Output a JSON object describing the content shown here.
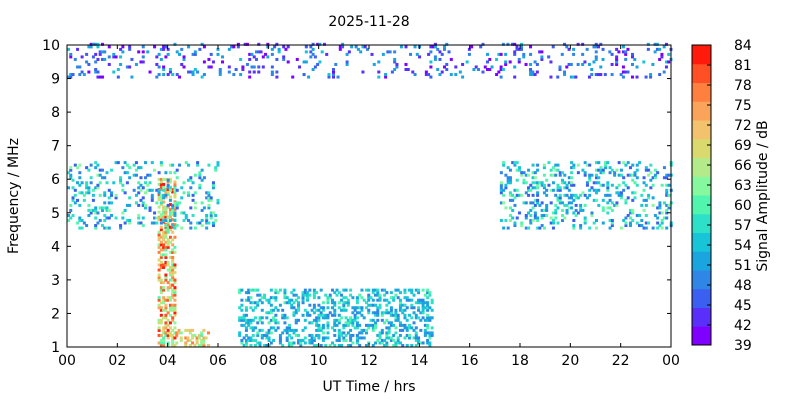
{
  "chart_data": {
    "type": "heatmap",
    "title": "2025-11-28",
    "xlabel": "UT Time / hrs",
    "ylabel": "Frequency / MHz",
    "colorbar_label": "Signal Amplitude / dB",
    "xlim": [
      0,
      24
    ],
    "ylim": [
      1,
      10
    ],
    "x_ticks": [
      "00",
      "02",
      "04",
      "06",
      "08",
      "10",
      "12",
      "14",
      "16",
      "18",
      "20",
      "22",
      "00"
    ],
    "y_ticks": [
      "1",
      "2",
      "3",
      "4",
      "5",
      "6",
      "7",
      "8",
      "9",
      "10"
    ],
    "colorbar": {
      "min": 39,
      "max": 84,
      "ticks": [
        "39",
        "42",
        "45",
        "48",
        "51",
        "54",
        "57",
        "60",
        "63",
        "66",
        "69",
        "72",
        "75",
        "78",
        "81",
        "84"
      ],
      "colors": [
        "#7f00ff",
        "#5a2ff9",
        "#3b5ff0",
        "#2f86e6",
        "#1aa5df",
        "#17c4d8",
        "#2fe0c8",
        "#52f5ae",
        "#86f99e",
        "#b3eb8a",
        "#d9d96e",
        "#f2c26e",
        "#f9a45a",
        "#ff7f3f",
        "#ff4f25",
        "#ff1a0c"
      ]
    },
    "grid": false,
    "description_of_features": [
      {
        "x": [
          3.6,
          4.3
        ],
        "y": [
          1.0,
          6.0
        ],
        "amplitude": [
          60,
          84
        ]
      },
      {
        "x": [
          4.3,
          5.6
        ],
        "y": [
          1.0,
          1.5
        ],
        "amplitude": [
          60,
          78
        ]
      },
      {
        "x": [
          6.8,
          14.5
        ],
        "y": [
          1.0,
          2.7
        ],
        "amplitude": [
          48,
          60
        ]
      },
      {
        "x": [
          0.0,
          6.0
        ],
        "y": [
          4.5,
          6.5
        ],
        "amplitude": [
          45,
          63
        ]
      },
      {
        "x": [
          17.2,
          24.0
        ],
        "y": [
          4.5,
          6.5
        ],
        "amplitude": [
          45,
          63
        ]
      },
      {
        "x": [
          0.0,
          24.0
        ],
        "y": [
          9.0,
          10.0
        ],
        "amplitude": [
          39,
          54
        ]
      }
    ]
  }
}
